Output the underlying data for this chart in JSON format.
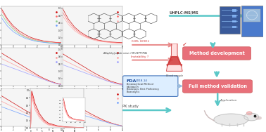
{
  "bg_color": "#ffffff",
  "left_panel_plots": [
    {
      "curves": [
        {
          "color": "#cc0000",
          "y": [
            1.0,
            0.72,
            0.52,
            0.38,
            0.28,
            0.2,
            0.15,
            0.11,
            0.09,
            0.07,
            0.06
          ]
        },
        {
          "color": "#ff6666",
          "y": [
            0.95,
            0.68,
            0.47,
            0.33,
            0.23,
            0.17,
            0.13,
            0.1,
            0.08,
            0.07,
            0.06
          ]
        },
        {
          "color": "#88cc88",
          "y": [
            0.85,
            0.6,
            0.42,
            0.3,
            0.21,
            0.15,
            0.11,
            0.08,
            0.06,
            0.05,
            0.04
          ]
        },
        {
          "color": "#6699ff",
          "y": [
            0.75,
            0.52,
            0.36,
            0.26,
            0.18,
            0.13,
            0.09,
            0.07,
            0.05,
            0.04,
            0.03
          ]
        }
      ],
      "type": "decay"
    },
    {
      "curves": [
        {
          "color": "#cc0000",
          "y": [
            0.9,
            0.8,
            0.7,
            0.6,
            0.5,
            0.4,
            0.3,
            0.21,
            0.14,
            0.08,
            0.04
          ]
        },
        {
          "color": "#ff9999",
          "y": [
            0.75,
            0.67,
            0.59,
            0.51,
            0.43,
            0.35,
            0.27,
            0.19,
            0.12,
            0.07,
            0.03
          ]
        },
        {
          "color": "#9999ff",
          "y": [
            0.6,
            0.54,
            0.48,
            0.42,
            0.36,
            0.3,
            0.24,
            0.18,
            0.12,
            0.07,
            0.03
          ]
        }
      ],
      "type": "decay"
    },
    {
      "curves": [
        {
          "color": "#cc0000",
          "y": [
            0.85,
            0.75,
            0.65,
            0.55,
            0.45,
            0.36,
            0.27,
            0.19,
            0.12,
            0.07,
            0.03
          ]
        },
        {
          "color": "#ff9999",
          "y": [
            0.7,
            0.62,
            0.54,
            0.46,
            0.38,
            0.3,
            0.22,
            0.15,
            0.1,
            0.06,
            0.02
          ]
        },
        {
          "color": "#6699ff",
          "y": [
            0.55,
            0.49,
            0.43,
            0.37,
            0.31,
            0.25,
            0.19,
            0.13,
            0.08,
            0.05,
            0.02
          ]
        }
      ],
      "type": "decay"
    }
  ],
  "right_panel_plots": [
    {
      "curves": [
        {
          "color": "#cc0000",
          "y": [
            1.0,
            0.7,
            0.49,
            0.35,
            0.25,
            0.18,
            0.13,
            0.1,
            0.08,
            0.07,
            0.06
          ]
        },
        {
          "color": "#ff6666",
          "y": [
            0.9,
            0.63,
            0.44,
            0.31,
            0.22,
            0.16,
            0.12,
            0.09,
            0.07,
            0.06,
            0.05
          ]
        },
        {
          "color": "#ffaaaa",
          "y": [
            0.8,
            0.56,
            0.39,
            0.28,
            0.2,
            0.14,
            0.1,
            0.08,
            0.06,
            0.05,
            0.04
          ]
        }
      ],
      "type": "decay"
    },
    {
      "curves": [
        {
          "color": "#cc0000",
          "y": [
            0.88,
            0.78,
            0.68,
            0.58,
            0.48,
            0.38,
            0.29,
            0.21,
            0.13,
            0.08,
            0.04
          ]
        },
        {
          "color": "#ff9999",
          "y": [
            0.72,
            0.64,
            0.56,
            0.48,
            0.4,
            0.32,
            0.24,
            0.17,
            0.11,
            0.06,
            0.03
          ]
        },
        {
          "color": "#9999ff",
          "y": [
            0.58,
            0.52,
            0.46,
            0.4,
            0.34,
            0.28,
            0.22,
            0.16,
            0.1,
            0.06,
            0.02
          ]
        }
      ],
      "type": "decay"
    },
    {
      "curves": [
        {
          "color": "#cc0000",
          "y": [
            0.8,
            0.7,
            0.6,
            0.51,
            0.42,
            0.33,
            0.25,
            0.17,
            0.11,
            0.06,
            0.02
          ]
        },
        {
          "color": "#ff9999",
          "y": [
            0.65,
            0.57,
            0.5,
            0.43,
            0.36,
            0.29,
            0.22,
            0.15,
            0.1,
            0.06,
            0.02
          ]
        },
        {
          "color": "#6699ff",
          "y": [
            0.5,
            0.44,
            0.39,
            0.34,
            0.29,
            0.24,
            0.19,
            0.14,
            0.09,
            0.05,
            0.02
          ]
        }
      ],
      "type": "decay"
    }
  ],
  "pk_curve": {
    "x": [
      0,
      0.5,
      1,
      2,
      4,
      6,
      8,
      12,
      16,
      24
    ],
    "curves": [
      {
        "color": "#cc0000",
        "y": [
          0,
          0.98,
          0.88,
          0.65,
          0.38,
          0.22,
          0.13,
          0.06,
          0.03,
          0.01
        ]
      },
      {
        "color": "#ff6666",
        "y": [
          0,
          0.92,
          0.8,
          0.56,
          0.32,
          0.18,
          0.1,
          0.05,
          0.02,
          0.01
        ]
      },
      {
        "color": "#ffaaaa",
        "y": [
          0,
          0.85,
          0.72,
          0.48,
          0.27,
          0.15,
          0.08,
          0.04,
          0.02,
          0.01
        ]
      }
    ]
  },
  "method_dev_color": "#e8707a",
  "method_val_color": "#e8707a",
  "arrow_cyan": "#5bc8c8",
  "arrow_pink": "#e88888",
  "fda_border": "#4a7abf",
  "fda_bg": "#ddeeff"
}
